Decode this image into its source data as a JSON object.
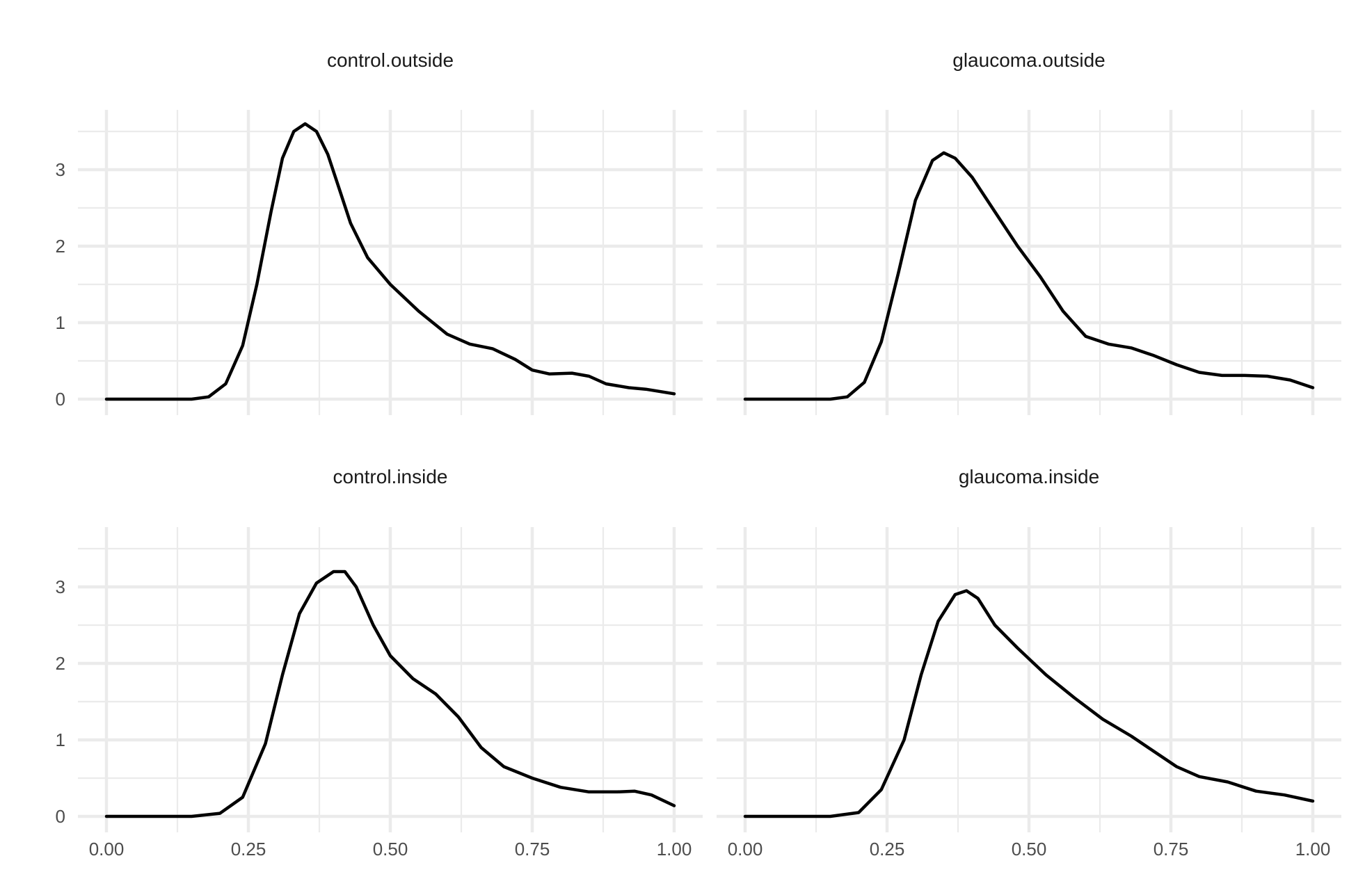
{
  "chart_data": {
    "type": "line",
    "title": "",
    "xlabel": "",
    "ylabel": "",
    "xlim": [
      0,
      1
    ],
    "ylim": [
      0,
      3.6
    ],
    "x_ticks": [
      "0.00",
      "0.25",
      "0.50",
      "0.75",
      "1.00"
    ],
    "y_ticks": [
      "0",
      "1",
      "2",
      "3"
    ],
    "grid": true,
    "facets": [
      {
        "label": "control.outside",
        "points": [
          [
            0,
            0
          ],
          [
            0.15,
            0
          ],
          [
            0.18,
            0.03
          ],
          [
            0.21,
            0.2
          ],
          [
            0.24,
            0.7
          ],
          [
            0.265,
            1.5
          ],
          [
            0.29,
            2.45
          ],
          [
            0.31,
            3.15
          ],
          [
            0.33,
            3.5
          ],
          [
            0.35,
            3.6
          ],
          [
            0.37,
            3.5
          ],
          [
            0.39,
            3.2
          ],
          [
            0.41,
            2.75
          ],
          [
            0.43,
            2.3
          ],
          [
            0.46,
            1.85
          ],
          [
            0.5,
            1.5
          ],
          [
            0.55,
            1.15
          ],
          [
            0.6,
            0.85
          ],
          [
            0.64,
            0.72
          ],
          [
            0.68,
            0.66
          ],
          [
            0.72,
            0.52
          ],
          [
            0.75,
            0.38
          ],
          [
            0.78,
            0.33
          ],
          [
            0.82,
            0.34
          ],
          [
            0.85,
            0.3
          ],
          [
            0.88,
            0.2
          ],
          [
            0.92,
            0.15
          ],
          [
            0.95,
            0.13
          ],
          [
            1.0,
            0.07
          ]
        ]
      },
      {
        "label": "glaucoma.outside",
        "points": [
          [
            0,
            0
          ],
          [
            0.15,
            0
          ],
          [
            0.18,
            0.03
          ],
          [
            0.21,
            0.22
          ],
          [
            0.24,
            0.75
          ],
          [
            0.27,
            1.65
          ],
          [
            0.3,
            2.6
          ],
          [
            0.33,
            3.12
          ],
          [
            0.35,
            3.22
          ],
          [
            0.37,
            3.15
          ],
          [
            0.4,
            2.9
          ],
          [
            0.44,
            2.45
          ],
          [
            0.48,
            2.0
          ],
          [
            0.52,
            1.6
          ],
          [
            0.56,
            1.15
          ],
          [
            0.6,
            0.82
          ],
          [
            0.64,
            0.72
          ],
          [
            0.68,
            0.67
          ],
          [
            0.72,
            0.57
          ],
          [
            0.76,
            0.45
          ],
          [
            0.8,
            0.35
          ],
          [
            0.84,
            0.31
          ],
          [
            0.88,
            0.31
          ],
          [
            0.92,
            0.3
          ],
          [
            0.96,
            0.25
          ],
          [
            1.0,
            0.15
          ]
        ]
      },
      {
        "label": "control.inside",
        "points": [
          [
            0,
            0
          ],
          [
            0.15,
            0
          ],
          [
            0.2,
            0.04
          ],
          [
            0.24,
            0.25
          ],
          [
            0.28,
            0.95
          ],
          [
            0.31,
            1.85
          ],
          [
            0.34,
            2.65
          ],
          [
            0.37,
            3.05
          ],
          [
            0.4,
            3.2
          ],
          [
            0.42,
            3.2
          ],
          [
            0.44,
            3.0
          ],
          [
            0.47,
            2.5
          ],
          [
            0.5,
            2.1
          ],
          [
            0.54,
            1.8
          ],
          [
            0.58,
            1.6
          ],
          [
            0.62,
            1.3
          ],
          [
            0.66,
            0.9
          ],
          [
            0.7,
            0.65
          ],
          [
            0.75,
            0.5
          ],
          [
            0.8,
            0.38
          ],
          [
            0.85,
            0.32
          ],
          [
            0.9,
            0.32
          ],
          [
            0.93,
            0.33
          ],
          [
            0.96,
            0.28
          ],
          [
            1.0,
            0.14
          ]
        ]
      },
      {
        "label": "glaucoma.inside",
        "points": [
          [
            0,
            0
          ],
          [
            0.15,
            0
          ],
          [
            0.2,
            0.05
          ],
          [
            0.24,
            0.35
          ],
          [
            0.28,
            1.0
          ],
          [
            0.31,
            1.85
          ],
          [
            0.34,
            2.55
          ],
          [
            0.37,
            2.9
          ],
          [
            0.39,
            2.95
          ],
          [
            0.41,
            2.85
          ],
          [
            0.44,
            2.5
          ],
          [
            0.48,
            2.2
          ],
          [
            0.53,
            1.85
          ],
          [
            0.58,
            1.55
          ],
          [
            0.63,
            1.27
          ],
          [
            0.68,
            1.05
          ],
          [
            0.72,
            0.85
          ],
          [
            0.76,
            0.65
          ],
          [
            0.8,
            0.52
          ],
          [
            0.85,
            0.45
          ],
          [
            0.9,
            0.33
          ],
          [
            0.95,
            0.28
          ],
          [
            1.0,
            0.2
          ]
        ]
      }
    ]
  }
}
